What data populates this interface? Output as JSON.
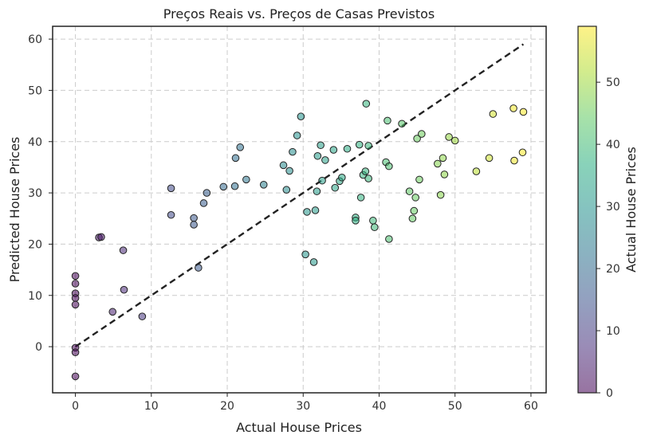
{
  "chart_data": {
    "type": "scatter",
    "title": "Preços Reais vs. Preços de Casas Previstos",
    "xlabel": "Actual House Prices",
    "ylabel": "Predicted House Prices",
    "colorbar_label": "Actual House Prices",
    "xlim": [
      -3,
      62
    ],
    "ylim": [
      -9,
      62.5
    ],
    "xticks": [
      0,
      10,
      20,
      30,
      40,
      50,
      60
    ],
    "yticks": [
      0,
      10,
      20,
      30,
      40,
      50,
      60
    ],
    "colorbar_range": [
      0,
      59
    ],
    "colorbar_ticks": [
      0,
      10,
      20,
      30,
      40,
      50
    ],
    "colormap": "viridis",
    "grid": true,
    "reference_line": {
      "style": "dashed",
      "color": "#222222",
      "from": [
        0,
        0
      ],
      "to": [
        59,
        59
      ]
    },
    "points": [
      {
        "x": 0,
        "y": 13.8
      },
      {
        "x": 0,
        "y": 12.3
      },
      {
        "x": 0,
        "y": 10.4
      },
      {
        "x": 0,
        "y": 9.5
      },
      {
        "x": 0,
        "y": 8.2
      },
      {
        "x": 0,
        "y": -0.2
      },
      {
        "x": 0,
        "y": -1.1
      },
      {
        "x": 0,
        "y": -5.8
      },
      {
        "x": 3.1,
        "y": 21.3
      },
      {
        "x": 3.4,
        "y": 21.4
      },
      {
        "x": 4.9,
        "y": 6.8
      },
      {
        "x": 6.3,
        "y": 18.8
      },
      {
        "x": 6.4,
        "y": 11.1
      },
      {
        "x": 8.8,
        "y": 5.9
      },
      {
        "x": 12.6,
        "y": 30.9
      },
      {
        "x": 12.6,
        "y": 25.7
      },
      {
        "x": 15.6,
        "y": 25.1
      },
      {
        "x": 15.6,
        "y": 23.8
      },
      {
        "x": 16.2,
        "y": 15.4
      },
      {
        "x": 16.9,
        "y": 28.0
      },
      {
        "x": 17.3,
        "y": 30.0
      },
      {
        "x": 19.5,
        "y": 31.2
      },
      {
        "x": 21.0,
        "y": 31.3
      },
      {
        "x": 21.1,
        "y": 36.8
      },
      {
        "x": 21.7,
        "y": 38.9
      },
      {
        "x": 22.5,
        "y": 32.6
      },
      {
        "x": 24.8,
        "y": 31.6
      },
      {
        "x": 27.4,
        "y": 35.4
      },
      {
        "x": 27.8,
        "y": 30.6
      },
      {
        "x": 28.2,
        "y": 34.3
      },
      {
        "x": 28.6,
        "y": 38.0
      },
      {
        "x": 29.2,
        "y": 41.2
      },
      {
        "x": 29.7,
        "y": 44.9
      },
      {
        "x": 30.3,
        "y": 18.0
      },
      {
        "x": 30.5,
        "y": 26.3
      },
      {
        "x": 31.4,
        "y": 16.5
      },
      {
        "x": 31.6,
        "y": 26.6
      },
      {
        "x": 31.8,
        "y": 30.3
      },
      {
        "x": 31.9,
        "y": 37.2
      },
      {
        "x": 32.3,
        "y": 39.3
      },
      {
        "x": 32.5,
        "y": 32.4
      },
      {
        "x": 32.9,
        "y": 36.4
      },
      {
        "x": 34.0,
        "y": 38.4
      },
      {
        "x": 34.2,
        "y": 31.0
      },
      {
        "x": 34.8,
        "y": 32.3
      },
      {
        "x": 35.1,
        "y": 33.0
      },
      {
        "x": 35.8,
        "y": 38.6
      },
      {
        "x": 36.9,
        "y": 25.2
      },
      {
        "x": 36.9,
        "y": 24.6
      },
      {
        "x": 37.4,
        "y": 39.4
      },
      {
        "x": 37.6,
        "y": 29.1
      },
      {
        "x": 37.9,
        "y": 33.5
      },
      {
        "x": 38.2,
        "y": 34.2
      },
      {
        "x": 38.3,
        "y": 47.4
      },
      {
        "x": 38.6,
        "y": 32.8
      },
      {
        "x": 38.6,
        "y": 39.2
      },
      {
        "x": 39.2,
        "y": 24.6
      },
      {
        "x": 39.4,
        "y": 23.3
      },
      {
        "x": 40.9,
        "y": 36.0
      },
      {
        "x": 41.1,
        "y": 44.1
      },
      {
        "x": 41.3,
        "y": 35.2
      },
      {
        "x": 41.3,
        "y": 21.0
      },
      {
        "x": 43.0,
        "y": 43.5
      },
      {
        "x": 44.0,
        "y": 30.3
      },
      {
        "x": 44.4,
        "y": 25.0
      },
      {
        "x": 44.6,
        "y": 26.5
      },
      {
        "x": 44.8,
        "y": 29.1
      },
      {
        "x": 45.0,
        "y": 40.6
      },
      {
        "x": 45.3,
        "y": 32.6
      },
      {
        "x": 45.6,
        "y": 41.5
      },
      {
        "x": 47.7,
        "y": 35.7
      },
      {
        "x": 48.1,
        "y": 29.6
      },
      {
        "x": 48.4,
        "y": 36.8
      },
      {
        "x": 48.6,
        "y": 33.6
      },
      {
        "x": 49.2,
        "y": 40.9
      },
      {
        "x": 50.0,
        "y": 40.2
      },
      {
        "x": 52.8,
        "y": 34.2
      },
      {
        "x": 54.5,
        "y": 36.8
      },
      {
        "x": 55.0,
        "y": 45.4
      },
      {
        "x": 57.7,
        "y": 46.5
      },
      {
        "x": 57.8,
        "y": 36.3
      },
      {
        "x": 58.9,
        "y": 37.9
      },
      {
        "x": 59.0,
        "y": 45.8
      }
    ]
  }
}
